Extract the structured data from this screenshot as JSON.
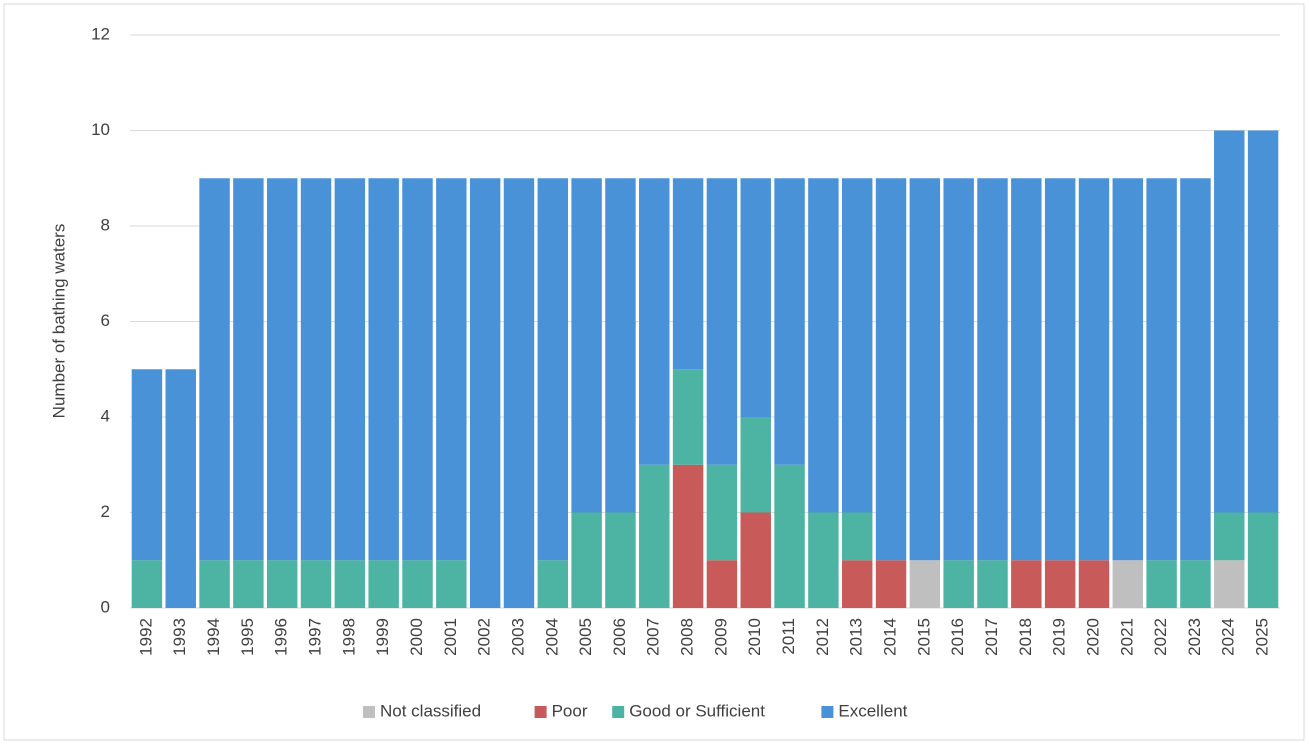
{
  "chart_data": {
    "type": "stacked_bar",
    "y_label": "Number of bathing waters",
    "categories": [
      "1992",
      "1993",
      "1994",
      "1995",
      "1996",
      "1997",
      "1998",
      "1999",
      "2000",
      "2001",
      "2002",
      "2003",
      "2004",
      "2005",
      "2006",
      "2007",
      "2008",
      "2009",
      "2010",
      "2011",
      "2012",
      "2013",
      "2014",
      "2015",
      "2016",
      "2017",
      "2018",
      "2019",
      "2020",
      "2021",
      "2022",
      "2023",
      "2024",
      "2025"
    ],
    "series": [
      {
        "name": "Not classified",
        "color": "#bfbfbf",
        "values": [
          0,
          0,
          0,
          0,
          0,
          0,
          0,
          0,
          0,
          0,
          0,
          0,
          0,
          0,
          0,
          0,
          0,
          0,
          0,
          0,
          0,
          0,
          0,
          1,
          0,
          0,
          0,
          0,
          0,
          1,
          0,
          0,
          1,
          0
        ]
      },
      {
        "name": "Poor",
        "color": "#c85a5a",
        "values": [
          0,
          0,
          0,
          0,
          0,
          0,
          0,
          0,
          0,
          0,
          0,
          0,
          0,
          0,
          0,
          0,
          3,
          1,
          2,
          0,
          0,
          1,
          1,
          0,
          0,
          0,
          1,
          1,
          1,
          0,
          0,
          0,
          0,
          0
        ]
      },
      {
        "name": "Good or Sufficient",
        "color": "#4db3a2",
        "values": [
          1,
          0,
          1,
          1,
          1,
          1,
          1,
          1,
          1,
          1,
          0,
          0,
          1,
          2,
          2,
          3,
          2,
          2,
          2,
          3,
          2,
          1,
          0,
          0,
          1,
          1,
          0,
          0,
          0,
          0,
          1,
          1,
          1,
          2
        ]
      },
      {
        "name": "Excellent",
        "color": "#4a92d8",
        "values": [
          4,
          5,
          8,
          8,
          8,
          8,
          8,
          8,
          8,
          8,
          9,
          9,
          8,
          7,
          7,
          6,
          4,
          6,
          5,
          6,
          7,
          7,
          8,
          8,
          8,
          8,
          8,
          8,
          8,
          8,
          8,
          8,
          8,
          8
        ]
      }
    ],
    "ylim": [
      0,
      12
    ],
    "yticks": [
      0,
      2,
      4,
      6,
      8,
      10,
      12
    ],
    "grid": true,
    "legend": "bottom"
  }
}
